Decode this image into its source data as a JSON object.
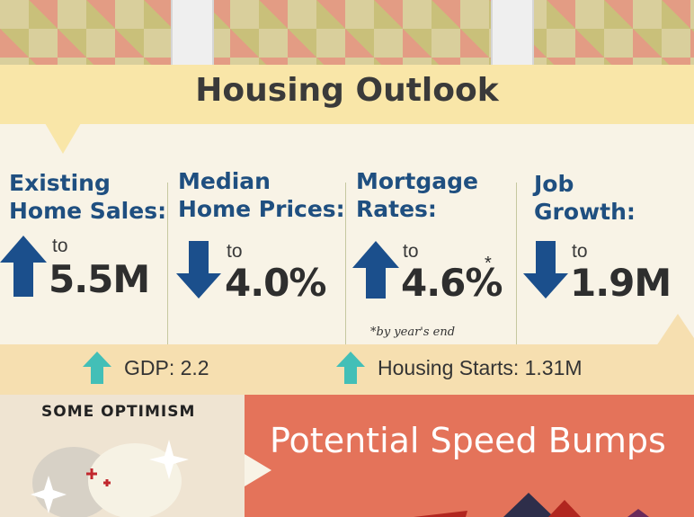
{
  "header": {
    "title": "Housing Outlook"
  },
  "stats": [
    {
      "label_line1": "Existing",
      "label_line2": "Home Sales:",
      "to": "to",
      "value": "5.5M",
      "direction": "up"
    },
    {
      "label_line1": "Median",
      "label_line2": "Home Prices:",
      "to": "to",
      "value": "4.0%",
      "direction": "down"
    },
    {
      "label_line1": "Mortgage",
      "label_line2": "Rates:",
      "to": "to",
      "value": "4.6%",
      "asterisk": "*",
      "direction": "up"
    },
    {
      "label_line1": "Job",
      "label_line2": "Growth:",
      "to": "to",
      "value": "1.9M",
      "direction": "down"
    }
  ],
  "footnote": "*by year's end",
  "indicators": [
    {
      "text": "GDP: 2.2",
      "direction": "up"
    },
    {
      "text": "Housing Starts: 1.31M",
      "direction": "up"
    }
  ],
  "optimism": {
    "title": "SOME OPTIMISM"
  },
  "speed_bumps": {
    "title": "Potential Speed Bumps"
  },
  "colors": {
    "stat_blue": "#1f4f80",
    "arrow_blue": "#1b4f8c",
    "arrow_teal": "#43bfb7",
    "title_band": "#f9e6a8",
    "indicator_band": "#f6dfb0",
    "bumps_panel": "#e4735a"
  }
}
